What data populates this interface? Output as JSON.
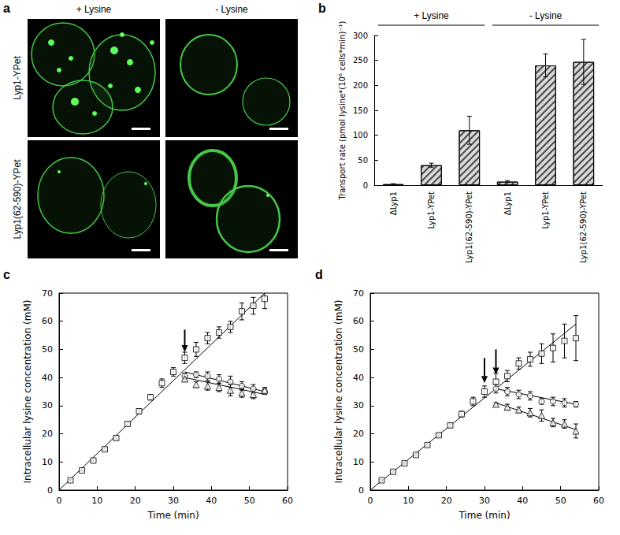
{
  "image_panel": {
    "panel_label": "a",
    "columns": [
      "+ Lysine",
      "- Lysine"
    ],
    "rows": [
      "Lyp1-YPet",
      "Lyp1(62-590)-YPet"
    ]
  },
  "chart_data": [
    {
      "panel_label": "b",
      "type": "bar",
      "categories": [
        "ΔLyp1",
        "Lyp1-YPet",
        "Lyp1(62-590)-YPet",
        "ΔLyp1",
        "Lyp1-YPet",
        "Lyp1(62-590)-YPet"
      ],
      "groups": [
        "+ Lysine",
        "- Lysine"
      ],
      "values": [
        2,
        40,
        110,
        7,
        240,
        247
      ],
      "errors": [
        1,
        4,
        28,
        2,
        23,
        45
      ],
      "color": "#d9d9d9",
      "ylabel": "Transport rate (pmol lysine*(10⁶ cells*min)⁻¹)",
      "ylim": [
        0,
        300
      ],
      "yticks": [
        0,
        50,
        100,
        150,
        200,
        250,
        300
      ],
      "grid": false
    },
    {
      "panel_label": "c",
      "type": "scatter",
      "xlabel": "Time (min)",
      "ylabel": "Intracellular lysine concentration (mM)",
      "xlim": [
        0,
        60
      ],
      "xticks": [
        0,
        10,
        20,
        30,
        40,
        50,
        60
      ],
      "ylim": [
        0,
        70
      ],
      "yticks": [
        0,
        10,
        20,
        30,
        40,
        50,
        60,
        70
      ],
      "grid": false,
      "arrows": [
        {
          "x": 33,
          "y_from": 57,
          "y_to": 49
        }
      ],
      "series": [
        {
          "type": "scatter",
          "marker": "square",
          "color": "#000000",
          "x": [
            3,
            6,
            9,
            12,
            15,
            18,
            21,
            24,
            27,
            30,
            33,
            36,
            39,
            42,
            45,
            48,
            51,
            54
          ],
          "values": [
            3.5,
            7,
            10.5,
            14.5,
            18.5,
            23.5,
            28,
            33,
            38,
            42,
            47,
            50,
            54,
            56,
            58,
            63.5,
            65.5,
            68
          ],
          "errors": [
            0.3,
            0.3,
            0.4,
            0.4,
            0.5,
            0.6,
            0.8,
            1,
            1.5,
            1.5,
            2,
            2.5,
            2,
            2,
            2,
            3,
            3,
            3.5
          ]
        },
        {
          "type": "scatter",
          "marker": "circle",
          "color": "#000000",
          "x": [
            33,
            36,
            39,
            42,
            45,
            48,
            51,
            54
          ],
          "values": [
            40.5,
            41,
            40.5,
            39.5,
            38.5,
            37,
            36,
            35
          ],
          "errors": [
            1,
            1,
            1.5,
            1.5,
            2,
            1.5,
            1.5,
            1
          ]
        },
        {
          "type": "scatter",
          "marker": "triangle",
          "color": "#000000",
          "x": [
            33,
            36,
            39,
            42,
            45,
            48,
            51,
            54
          ],
          "values": [
            39.5,
            37.5,
            37,
            36.5,
            35.5,
            34.5,
            34,
            35.5
          ],
          "errors": [
            1,
            1,
            1.5,
            1.5,
            2,
            1.5,
            1.5,
            1
          ]
        },
        {
          "type": "line",
          "marker": "none",
          "color": "#000000",
          "x": [
            0,
            54
          ],
          "values": [
            0,
            70
          ]
        },
        {
          "type": "line",
          "marker": "none",
          "color": "#000000",
          "x": [
            33,
            54
          ],
          "values": [
            42,
            35
          ]
        },
        {
          "type": "line",
          "marker": "none",
          "color": "#000000",
          "x": [
            33,
            54
          ],
          "values": [
            40,
            34
          ]
        }
      ]
    },
    {
      "panel_label": "d",
      "type": "scatter",
      "xlabel": "Time (min)",
      "ylabel": "Intracellular lysine concentration (mM)",
      "xlim": [
        0,
        60
      ],
      "xticks": [
        0,
        10,
        20,
        30,
        40,
        50,
        60
      ],
      "ylim": [
        0,
        70
      ],
      "yticks": [
        0,
        10,
        20,
        30,
        40,
        50,
        60,
        70
      ],
      "grid": false,
      "arrows": [
        {
          "x": 30,
          "y_from": 47,
          "y_to": 38
        },
        {
          "x": 33,
          "y_from": 50,
          "y_to": 41
        }
      ],
      "series": [
        {
          "type": "scatter",
          "marker": "square",
          "color": "#000000",
          "x": [
            3,
            6,
            9,
            12,
            15,
            18,
            21,
            24,
            27,
            30,
            33,
            36,
            39,
            42,
            45,
            48,
            51,
            54
          ],
          "values": [
            3.5,
            6.5,
            9.5,
            12.5,
            16,
            19.5,
            23,
            27,
            31.5,
            35,
            38.5,
            40.5,
            45,
            46.5,
            48.5,
            50.5,
            53,
            54
          ],
          "errors": [
            0.3,
            0.3,
            0.3,
            0.4,
            0.5,
            0.5,
            0.7,
            1,
            1.5,
            2,
            3,
            2,
            2,
            2.5,
            3.5,
            5,
            6,
            8
          ]
        },
        {
          "type": "scatter",
          "marker": "circle",
          "color": "#000000",
          "x": [
            33,
            36,
            39,
            42,
            45,
            48,
            51,
            54
          ],
          "values": [
            36,
            35,
            34,
            33.5,
            31.5,
            31.5,
            31,
            30.5
          ],
          "errors": [
            1.5,
            1.5,
            1.5,
            1.5,
            1,
            1.5,
            1.5,
            1
          ]
        },
        {
          "type": "scatter",
          "marker": "triangle",
          "color": "#000000",
          "x": [
            33,
            36,
            39,
            42,
            45,
            48,
            51,
            54
          ],
          "values": [
            30.5,
            29.5,
            28.5,
            27.5,
            26.5,
            24,
            23.5,
            21
          ],
          "errors": [
            0.5,
            1,
            1,
            1.5,
            2,
            1.5,
            1.5,
            2.5
          ]
        },
        {
          "type": "line",
          "marker": "none",
          "color": "#000000",
          "x": [
            0,
            54
          ],
          "values": [
            0,
            59
          ]
        },
        {
          "type": "line",
          "marker": "none",
          "color": "#000000",
          "x": [
            33,
            54
          ],
          "values": [
            36,
            30.5
          ]
        },
        {
          "type": "line",
          "marker": "none",
          "color": "#000000",
          "x": [
            33,
            54
          ],
          "values": [
            31,
            21.5
          ]
        }
      ]
    }
  ]
}
